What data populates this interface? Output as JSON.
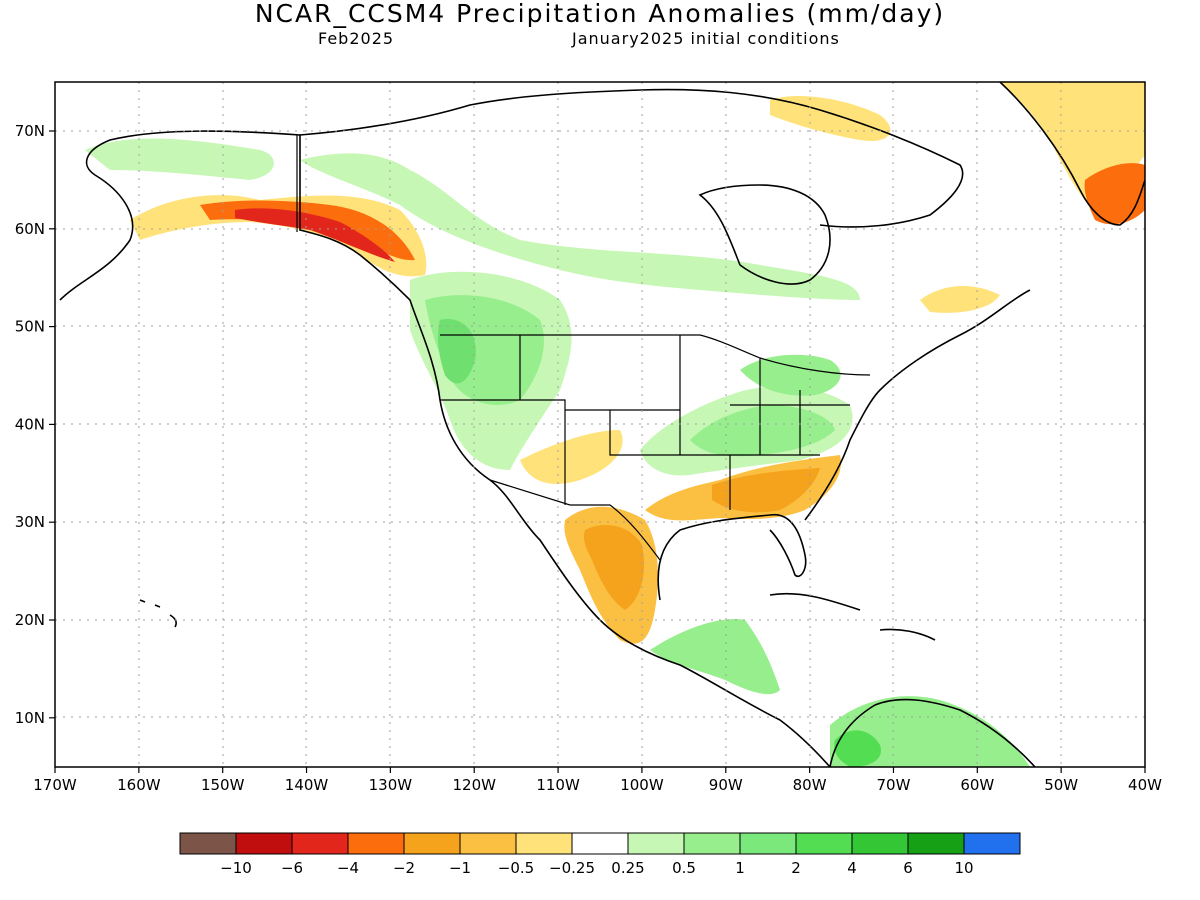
{
  "header": {
    "title": "NCAR_CCSM4 Precipitation Anomalies (mm/day)",
    "month": "Feb2025",
    "initial_conditions": "January2025 initial conditions"
  },
  "map": {
    "lat_labels": [
      "70N",
      "60N",
      "50N",
      "40N",
      "30N",
      "20N",
      "10N"
    ],
    "lon_labels": [
      "170W",
      "160W",
      "150W",
      "140W",
      "130W",
      "120W",
      "110W",
      "100W",
      "90W",
      "80W",
      "70W",
      "60W",
      "50W",
      "40W"
    ],
    "colors": {
      "ocean": "#ffffff",
      "land": "#ffffff",
      "dry_light": "#ffe27a",
      "dry_mid": "#fbc042",
      "dry_strong": "#f5a21c",
      "dry_vstrong": "#fb6d0d",
      "dry_extreme": "#e3261b",
      "wet_light": "#c6f7b5",
      "wet_mid": "#96ee8c",
      "wet_strong": "#6fe06f",
      "wet_vstrong": "#44c644"
    }
  },
  "legend": {
    "colors": [
      "#7c5548",
      "#c00e0f",
      "#e3261b",
      "#fb6d0d",
      "#f5a21c",
      "#fbc042",
      "#ffe27a",
      "#ffffff",
      "#c6f7b5",
      "#96ee8c",
      "#7ae87a",
      "#52dd52",
      "#34c634",
      "#15a015",
      "#2170ee"
    ],
    "labels": [
      "−10",
      "−6",
      "−4",
      "−2",
      "−1",
      "−0.5",
      "−0.25",
      "0.25",
      "0.5",
      "1",
      "2",
      "4",
      "6",
      "10"
    ]
  }
}
